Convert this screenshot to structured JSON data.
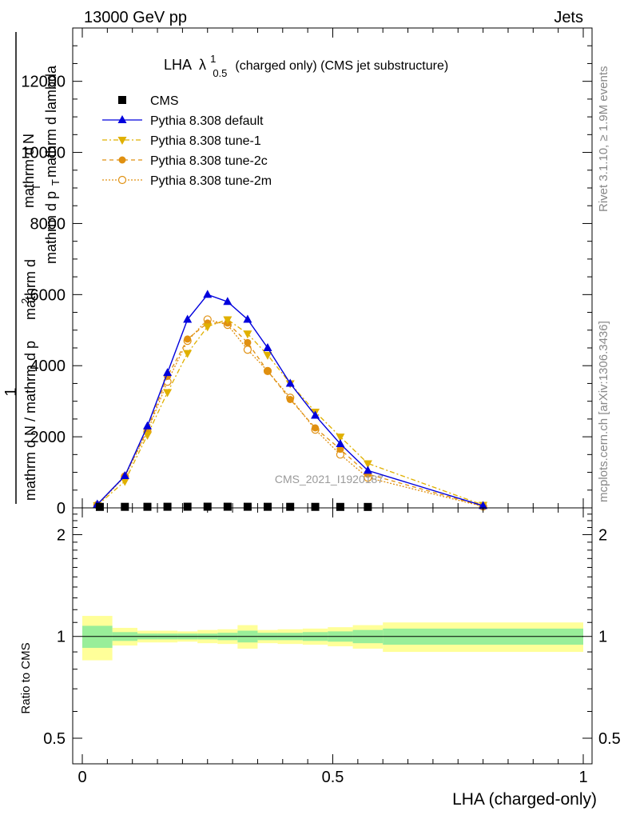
{
  "header": {
    "left": "13000 GeV pp",
    "right": "Jets"
  },
  "side": {
    "rivet": "Rivet 3.1.10, ≥ 1.9M events",
    "mcplots": "mcplots.cern.ch [arXiv:1306.3436]"
  },
  "chart_data": [
    {
      "type": "line",
      "title": "LHA",
      "title_symbol": "λ",
      "title_sup": "1",
      "title_sub": "0.5",
      "title_rest": "(charged only) (CMS jet substructure)",
      "ylabel_lines": [
        "1",
        "mathrm d N / mathrm d p",
        "T",
        "mathrm d",
        "2",
        "N",
        "mathrm d p",
        "T",
        "mathrm d lambda"
      ],
      "ylim": [
        0,
        13500
      ],
      "xlim": [
        -0.02,
        1.02
      ],
      "yticks": [
        {
          "v": 0,
          "label": "0"
        },
        {
          "v": 2000,
          "label": "2000"
        },
        {
          "v": 4000,
          "label": "4000"
        },
        {
          "v": 6000,
          "label": "6000"
        },
        {
          "v": 8000,
          "label": "8000"
        },
        {
          "v": 10000,
          "label": "10000"
        },
        {
          "v": 12000,
          "label": "12000"
        }
      ],
      "watermark": "CMS_2021_I1920187",
      "legend_position": "top-left",
      "series": [
        {
          "name": "CMS",
          "color": "#000000",
          "marker": "square",
          "x": [
            0.035,
            0.085,
            0.13,
            0.17,
            0.21,
            0.25,
            0.29,
            0.33,
            0.37,
            0.415,
            0.465,
            0.515,
            0.57
          ],
          "y": [
            5,
            7,
            8,
            9,
            10,
            11,
            10,
            9,
            8,
            7,
            6,
            5,
            4
          ]
        },
        {
          "name": "Pythia 8.308 default",
          "color": "#0000dd",
          "marker": "triangle-up",
          "dash": "",
          "x": [
            0.03,
            0.085,
            0.13,
            0.17,
            0.21,
            0.25,
            0.29,
            0.33,
            0.37,
            0.415,
            0.465,
            0.515,
            0.57,
            0.8
          ],
          "y": [
            100,
            900,
            2300,
            3800,
            5300,
            6000,
            5800,
            5300,
            4500,
            3500,
            2600,
            1800,
            1050,
            60
          ]
        },
        {
          "name": "Pythia 8.308 tune-1",
          "color": "#e0b000",
          "marker": "triangle-down",
          "dash": "6,3,2,3",
          "x": [
            0.03,
            0.085,
            0.13,
            0.17,
            0.21,
            0.25,
            0.29,
            0.33,
            0.37,
            0.415,
            0.465,
            0.515,
            0.57,
            0.8
          ],
          "y": [
            70,
            750,
            2050,
            3250,
            4350,
            5100,
            5300,
            4900,
            4300,
            3500,
            2700,
            2000,
            1250,
            80
          ]
        },
        {
          "name": "Pythia 8.308 tune-2c",
          "color": "#e09010",
          "marker": "circle",
          "dash": "5,4",
          "x": [
            0.03,
            0.085,
            0.13,
            0.17,
            0.21,
            0.25,
            0.29,
            0.33,
            0.37,
            0.415,
            0.465,
            0.515,
            0.57,
            0.8
          ],
          "y": [
            90,
            900,
            2200,
            3700,
            4750,
            5200,
            5200,
            4650,
            3850,
            3050,
            2250,
            1650,
            950,
            50
          ]
        },
        {
          "name": "Pythia 8.308 tune-2m",
          "color": "#e09010",
          "marker": "circle-open",
          "dash": "2,2",
          "x": [
            0.03,
            0.085,
            0.13,
            0.17,
            0.21,
            0.25,
            0.29,
            0.33,
            0.37,
            0.415,
            0.465,
            0.515,
            0.57,
            0.8
          ],
          "y": [
            80,
            880,
            2150,
            3550,
            4700,
            5300,
            5150,
            4450,
            3850,
            3100,
            2200,
            1500,
            850,
            40
          ]
        }
      ]
    },
    {
      "type": "area",
      "ylabel": "Ratio to CMS",
      "xlabel": "LHA (charged-only)",
      "log_y": true,
      "ylim": [
        0.42,
        2.4
      ],
      "yticks": [
        {
          "v": 0.5,
          "label": "0.5"
        },
        {
          "v": 1,
          "label": "1"
        },
        {
          "v": 2,
          "label": "2"
        }
      ],
      "xticks": [
        {
          "v": 0,
          "label": "0"
        },
        {
          "v": 0.5,
          "label": "0.5"
        },
        {
          "v": 1,
          "label": "1"
        }
      ],
      "colors": {
        "inner": "#99ee99",
        "outer": "#ffff99",
        "line": "#000000"
      },
      "bands": [
        {
          "x0": 0.0,
          "x1": 0.06,
          "in_lo": 0.925,
          "in_hi": 1.075,
          "out_lo": 0.85,
          "out_hi": 1.15
        },
        {
          "x0": 0.06,
          "x1": 0.11,
          "in_lo": 0.97,
          "in_hi": 1.03,
          "out_lo": 0.94,
          "out_hi": 1.06
        },
        {
          "x0": 0.11,
          "x1": 0.15,
          "in_lo": 0.98,
          "in_hi": 1.02,
          "out_lo": 0.96,
          "out_hi": 1.04
        },
        {
          "x0": 0.15,
          "x1": 0.19,
          "in_lo": 0.98,
          "in_hi": 1.02,
          "out_lo": 0.96,
          "out_hi": 1.04
        },
        {
          "x0": 0.19,
          "x1": 0.23,
          "in_lo": 0.98,
          "in_hi": 1.02,
          "out_lo": 0.965,
          "out_hi": 1.035
        },
        {
          "x0": 0.23,
          "x1": 0.27,
          "in_lo": 0.98,
          "in_hi": 1.02,
          "out_lo": 0.955,
          "out_hi": 1.045
        },
        {
          "x0": 0.27,
          "x1": 0.31,
          "in_lo": 0.975,
          "in_hi": 1.025,
          "out_lo": 0.95,
          "out_hi": 1.05
        },
        {
          "x0": 0.31,
          "x1": 0.35,
          "in_lo": 0.96,
          "in_hi": 1.04,
          "out_lo": 0.92,
          "out_hi": 1.08
        },
        {
          "x0": 0.35,
          "x1": 0.39,
          "in_lo": 0.975,
          "in_hi": 1.025,
          "out_lo": 0.955,
          "out_hi": 1.045
        },
        {
          "x0": 0.39,
          "x1": 0.44,
          "in_lo": 0.975,
          "in_hi": 1.025,
          "out_lo": 0.95,
          "out_hi": 1.05
        },
        {
          "x0": 0.44,
          "x1": 0.49,
          "in_lo": 0.97,
          "in_hi": 1.03,
          "out_lo": 0.945,
          "out_hi": 1.055
        },
        {
          "x0": 0.49,
          "x1": 0.54,
          "in_lo": 0.965,
          "in_hi": 1.035,
          "out_lo": 0.935,
          "out_hi": 1.065
        },
        {
          "x0": 0.54,
          "x1": 0.6,
          "in_lo": 0.955,
          "in_hi": 1.045,
          "out_lo": 0.92,
          "out_hi": 1.08
        },
        {
          "x0": 0.6,
          "x1": 1.0,
          "in_lo": 0.945,
          "in_hi": 1.055,
          "out_lo": 0.9,
          "out_hi": 1.1
        }
      ]
    }
  ]
}
